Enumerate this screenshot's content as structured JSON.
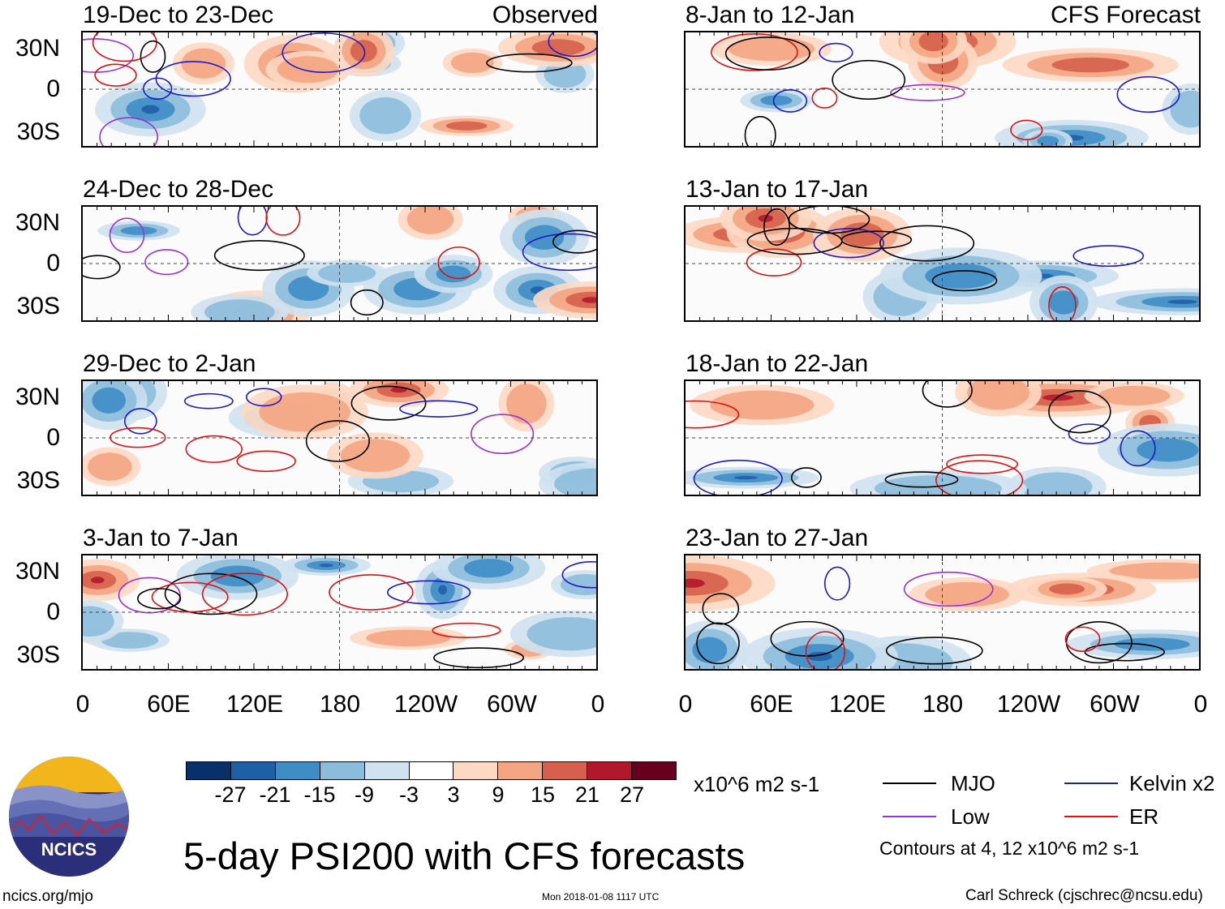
{
  "panels": {
    "observed_label": "Observed",
    "forecast_label": "CFS Forecast",
    "observed": [
      {
        "title": "19-Dec to 23-Dec"
      },
      {
        "title": "24-Dec to 28-Dec"
      },
      {
        "title": "29-Dec to 2-Jan"
      },
      {
        "title": "3-Jan to 7-Jan"
      }
    ],
    "forecast": [
      {
        "title": "8-Jan to 12-Jan"
      },
      {
        "title": "13-Jan to 17-Jan"
      },
      {
        "title": "18-Jan to 22-Jan"
      },
      {
        "title": "23-Jan to 27-Jan"
      }
    ]
  },
  "lat_labels": [
    "30N",
    "0",
    "30S"
  ],
  "lon_labels": [
    "0",
    "60E",
    "120E",
    "180",
    "120W",
    "60W",
    "0"
  ],
  "colorbar": {
    "colors": [
      "#08306b",
      "#1f5fa6",
      "#3f8dc5",
      "#8cbcdb",
      "#cfe2f0",
      "#ffffff",
      "#fdd9c4",
      "#f4a582",
      "#d6604d",
      "#b2182b",
      "#67001f"
    ],
    "labels": [
      "-27",
      "-21",
      "-15",
      "-9",
      "-3",
      "3",
      "9",
      "15",
      "21",
      "27"
    ],
    "units": "x10^6 m2 s-1"
  },
  "legend": {
    "items": [
      {
        "label": "MJO",
        "color": "#000000"
      },
      {
        "label": "Kelvin x2",
        "color": "#1a1acc"
      },
      {
        "label": "Low",
        "color": "#9b30d9"
      },
      {
        "label": "ER",
        "color": "#e01010"
      }
    ],
    "contours_note": "Contours at 4, 12 x10^6 m2 s-1"
  },
  "title": "5-day PSI200 with CFS forecasts",
  "logo": {
    "text": "NCICS"
  },
  "footer": {
    "url": "ncics.org/mjo",
    "timestamp": "Mon 2018-01-08 1117 UTC",
    "credit": "Carl Schreck (cjschrec@ncsu.edu)"
  }
}
